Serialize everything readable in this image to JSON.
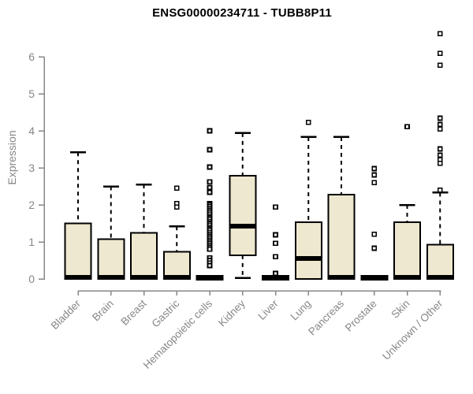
{
  "title": "ENSG00000234711 - TUBB8P11",
  "ylabel": "Expression",
  "colors": {
    "box_fill": "#EDE8CF",
    "box_stroke": "#000000",
    "median": "#000000",
    "whisker": "#000000",
    "outlier_fill": "#ffffff",
    "axis": "#878787",
    "tick_label": "#878787",
    "title": "#000000",
    "background": "#ffffff"
  },
  "chart_data": {
    "type": "boxplot",
    "title": "ENSG00000234711 - TUBB8P11",
    "xlabel": "",
    "ylabel": "Expression",
    "ylim": [
      0,
      6.8
    ],
    "yticks": [
      0,
      1,
      2,
      3,
      4,
      5,
      6
    ],
    "grid": false,
    "legend": "none",
    "categories": [
      "Bladder",
      "Brain",
      "Breast",
      "Gastric",
      "Hematopoietic cells",
      "Kidney",
      "Liver",
      "Lung",
      "Pancreas",
      "Prostate",
      "Skin",
      "Unknown / Other"
    ],
    "series": [
      {
        "name": "Bladder",
        "q1": 0,
        "median": 0.04,
        "q3": 1.5,
        "whisker_low": 0,
        "whisker_high": 3.42,
        "outliers": []
      },
      {
        "name": "Brain",
        "q1": 0,
        "median": 0.04,
        "q3": 1.07,
        "whisker_low": 0,
        "whisker_high": 2.5,
        "outliers": []
      },
      {
        "name": "Breast",
        "q1": 0,
        "median": 0.04,
        "q3": 1.25,
        "whisker_low": 0,
        "whisker_high": 2.55,
        "outliers": []
      },
      {
        "name": "Gastric",
        "q1": 0,
        "median": 0.04,
        "q3": 0.73,
        "whisker_low": 0,
        "whisker_high": 1.42,
        "outliers": [
          2.45,
          2.04,
          1.94
        ]
      },
      {
        "name": "Hematopoietic cells",
        "q1": 0,
        "median": 0.03,
        "q3": 0.05,
        "whisker_low": 0,
        "whisker_high": 0.05,
        "outliers": [
          4.0,
          3.49,
          3.02,
          2.62,
          2.47,
          2.34,
          2.04,
          2.0,
          1.95,
          1.9,
          1.85,
          1.8,
          1.75,
          1.7,
          1.65,
          1.6,
          1.55,
          1.5,
          1.45,
          1.4,
          1.35,
          1.3,
          1.25,
          1.2,
          1.15,
          1.1,
          1.05,
          1.0,
          0.95,
          0.9,
          0.85,
          0.8,
          0.57,
          0.5,
          0.43,
          0.36
        ]
      },
      {
        "name": "Kidney",
        "q1": 0.64,
        "median": 1.43,
        "q3": 2.79,
        "whisker_low": 0.03,
        "whisker_high": 3.94,
        "outliers": []
      },
      {
        "name": "Liver",
        "q1": 0,
        "median": 0.03,
        "q3": 0.05,
        "whisker_low": 0,
        "whisker_high": 0.05,
        "outliers": [
          1.94,
          1.19,
          0.96,
          0.6,
          0.15
        ]
      },
      {
        "name": "Lung",
        "q1": 0,
        "median": 0.55,
        "q3": 1.53,
        "whisker_low": 0,
        "whisker_high": 3.83,
        "outliers": [
          4.23
        ]
      },
      {
        "name": "Pancreas",
        "q1": 0,
        "median": 0.04,
        "q3": 2.28,
        "whisker_low": 0,
        "whisker_high": 3.83,
        "outliers": []
      },
      {
        "name": "Prostate",
        "q1": 0,
        "median": 0.03,
        "q3": 0.05,
        "whisker_low": 0,
        "whisker_high": 0.05,
        "outliers": [
          2.98,
          2.81,
          2.6,
          1.21,
          0.83
        ]
      },
      {
        "name": "Skin",
        "q1": 0,
        "median": 0.04,
        "q3": 1.53,
        "whisker_low": 0,
        "whisker_high": 2.0,
        "outliers": [
          4.11
        ]
      },
      {
        "name": "Unknown / Other",
        "q1": 0,
        "median": 0.04,
        "q3": 0.93,
        "whisker_low": 0,
        "whisker_high": 2.33,
        "outliers": [
          6.62,
          6.09,
          5.77,
          4.34,
          4.17,
          4.05,
          3.51,
          3.34,
          3.22,
          3.12,
          2.4
        ]
      }
    ]
  }
}
